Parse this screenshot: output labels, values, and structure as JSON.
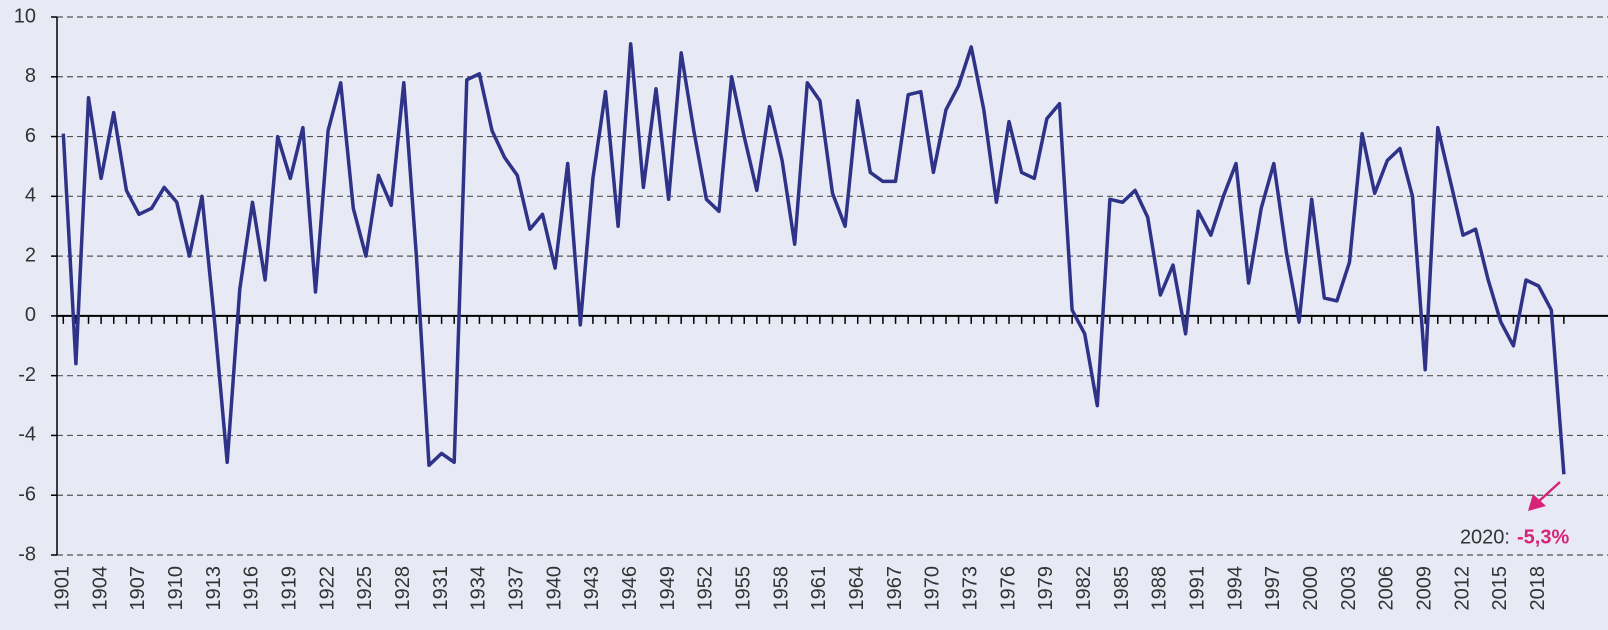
{
  "chart_data": {
    "type": "line",
    "x": [
      1901,
      1902,
      1903,
      1904,
      1905,
      1906,
      1907,
      1908,
      1909,
      1910,
      1911,
      1912,
      1913,
      1914,
      1915,
      1916,
      1917,
      1918,
      1919,
      1920,
      1921,
      1922,
      1923,
      1924,
      1925,
      1926,
      1927,
      1928,
      1929,
      1930,
      1931,
      1932,
      1933,
      1934,
      1935,
      1936,
      1937,
      1938,
      1939,
      1940,
      1941,
      1942,
      1943,
      1944,
      1945,
      1946,
      1947,
      1948,
      1949,
      1950,
      1951,
      1952,
      1953,
      1954,
      1955,
      1956,
      1957,
      1958,
      1959,
      1960,
      1961,
      1962,
      1963,
      1964,
      1965,
      1966,
      1967,
      1968,
      1969,
      1970,
      1971,
      1972,
      1973,
      1974,
      1975,
      1976,
      1977,
      1978,
      1979,
      1980,
      1981,
      1982,
      1983,
      1984,
      1985,
      1986,
      1987,
      1988,
      1989,
      1990,
      1991,
      1992,
      1993,
      1994,
      1995,
      1996,
      1997,
      1998,
      1999,
      2000,
      2001,
      2002,
      2003,
      2004,
      2005,
      2006,
      2007,
      2008,
      2009,
      2010,
      2011,
      2012,
      2013,
      2014,
      2015,
      2016,
      2017,
      2018,
      2019,
      2020
    ],
    "series": [
      {
        "color": "#2e3388",
        "values": [
          6.1,
          -1.6,
          7.3,
          4.6,
          6.8,
          4.2,
          3.4,
          3.6,
          4.3,
          3.8,
          2.0,
          4.0,
          -0.2,
          -4.9,
          0.9,
          3.8,
          1.2,
          6.0,
          4.6,
          6.3,
          0.8,
          6.2,
          7.8,
          3.6,
          2.0,
          4.7,
          3.7,
          7.8,
          2.0,
          -5.0,
          -4.6,
          -4.9,
          7.9,
          8.1,
          6.2,
          5.3,
          4.7,
          2.9,
          3.4,
          1.6,
          5.1,
          -0.3,
          4.6,
          7.5,
          3.0,
          9.1,
          4.3,
          7.6,
          3.9,
          8.8,
          6.2,
          3.9,
          3.5,
          8.0,
          6.0,
          4.2,
          7.0,
          5.2,
          2.4,
          7.8,
          7.2,
          4.1,
          3.0,
          7.2,
          4.8,
          4.5,
          4.5,
          7.4,
          7.5,
          4.8,
          6.9,
          7.7,
          9.0,
          6.9,
          3.8,
          6.5,
          4.8,
          4.6,
          6.6,
          7.1,
          0.2,
          -0.6,
          -3.0,
          3.9,
          3.8,
          4.2,
          3.3,
          0.7,
          1.7,
          -0.6,
          3.5,
          2.7,
          4.0,
          5.1,
          1.1,
          3.6,
          5.1,
          2.1,
          -0.2,
          3.9,
          0.6,
          0.5,
          1.8,
          6.1,
          4.1,
          5.2,
          5.6,
          4.0,
          -1.8,
          6.3,
          4.5,
          2.7,
          2.9,
          1.2,
          -0.2,
          -1.0,
          1.2,
          1.0,
          0.2,
          -5.3
        ]
      }
    ],
    "xlim": [
      1900.5,
      2023.5
    ],
    "xticks": [
      1901,
      1904,
      1907,
      1910,
      1913,
      1916,
      1919,
      1922,
      1925,
      1928,
      1931,
      1934,
      1937,
      1940,
      1943,
      1946,
      1949,
      1952,
      1955,
      1958,
      1961,
      1964,
      1967,
      1970,
      1973,
      1976,
      1979,
      1982,
      1985,
      1988,
      1991,
      1994,
      1997,
      2000,
      2003,
      2006,
      2009,
      2012,
      2015,
      2018
    ],
    "ylim": [
      -8,
      10
    ],
    "yticks": [
      -8,
      -6,
      -4,
      -2,
      0,
      2,
      4,
      6,
      8,
      10
    ],
    "grid": true,
    "annotation": {
      "label": "2020:",
      "value_label": "-5,3%",
      "color": "#d6247a"
    }
  }
}
